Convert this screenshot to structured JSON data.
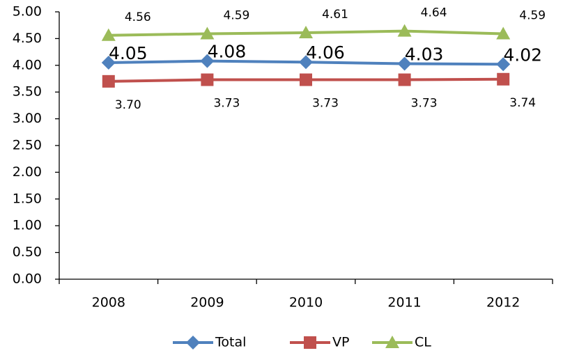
{
  "chart_data": {
    "type": "line",
    "categories": [
      "2008",
      "2009",
      "2010",
      "2011",
      "2012"
    ],
    "series": [
      {
        "name": "Total",
        "color": "#4f81bd",
        "marker": "diamond",
        "values": [
          4.05,
          4.08,
          4.06,
          4.03,
          4.02
        ],
        "value_labels": [
          "4.05",
          "4.08",
          "4.06",
          "4.03",
          "4.02"
        ]
      },
      {
        "name": "VP",
        "color": "#c0504d",
        "marker": "square",
        "values": [
          3.7,
          3.73,
          3.73,
          3.73,
          3.74
        ],
        "value_labels": [
          "3.70",
          "3.73",
          "3.73",
          "3.73",
          "3.74"
        ]
      },
      {
        "name": "CL",
        "color": "#9bbb59",
        "marker": "triangle",
        "values": [
          4.56,
          4.59,
          4.61,
          4.64,
          4.59
        ],
        "value_labels": [
          "4.56",
          "4.59",
          "4.61",
          "4.64",
          "4.59"
        ]
      }
    ],
    "ylim": [
      0,
      5
    ],
    "yticks": [
      {
        "value": 0,
        "label": "0.00"
      },
      {
        "value": 0.5,
        "label": "0.50"
      },
      {
        "value": 1,
        "label": "1.00"
      },
      {
        "value": 1.5,
        "label": "1.50"
      },
      {
        "value": 2,
        "label": "2.00"
      },
      {
        "value": 2.5,
        "label": "2.50"
      },
      {
        "value": 3,
        "label": "3.00"
      },
      {
        "value": 3.5,
        "label": "3.50"
      },
      {
        "value": 4,
        "label": "4.00"
      },
      {
        "value": 4.5,
        "label": "4.50"
      },
      {
        "value": 5,
        "label": "5.00"
      }
    ],
    "legend": "bottom"
  }
}
